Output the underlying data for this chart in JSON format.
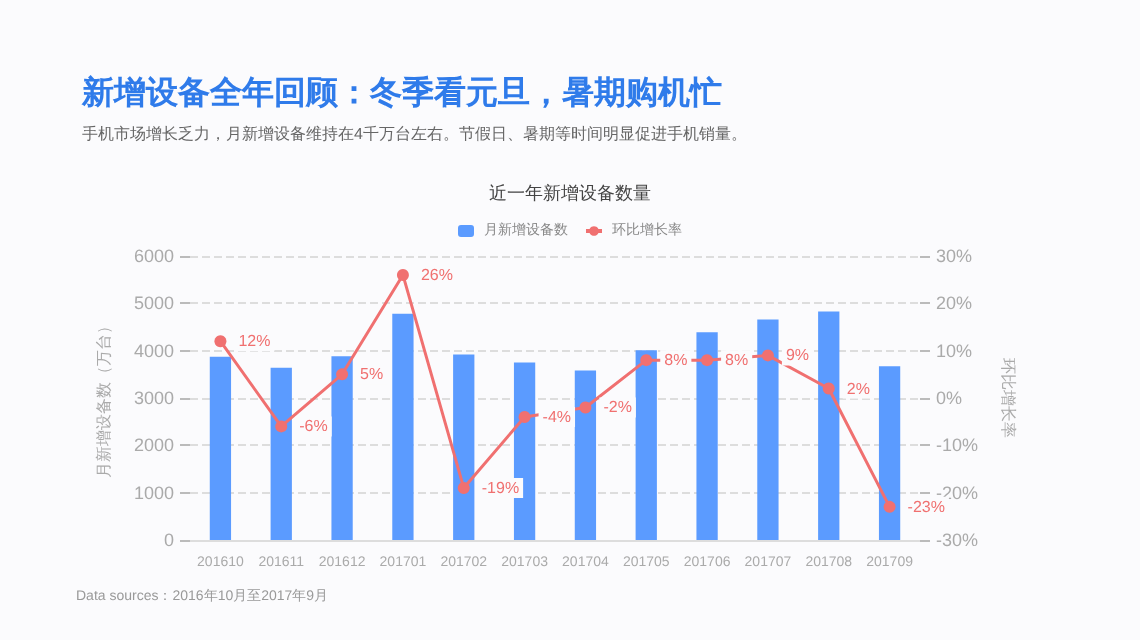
{
  "chart_data": {
    "type": "bar",
    "title": "新增设备全年回顾：冬季看元旦，暑期购机忙",
    "subtitle": "手机市场增长乏力，月新增设备维持在4千万台左右。节假日、暑期等时间明显促进手机销量。",
    "annotations": [
      "近一年新增设备数量",
      "Data sources：2016年10月至2017年9月"
    ],
    "ylabel": "月新增设备数（万台）",
    "y2label": "环比增长率",
    "categories": [
      "201610",
      "201611",
      "201612",
      "201701",
      "201702",
      "201703",
      "201704",
      "201705",
      "201706",
      "201707",
      "201708",
      "201709"
    ],
    "series": [
      {
        "name": "月新增设备数",
        "color": "#5b9bff",
        "values": [
          3870,
          3640,
          3880,
          4780,
          3920,
          3750,
          3580,
          4010,
          4390,
          4660,
          4830,
          3670
        ]
      },
      {
        "name": "环比增长率",
        "type": "line",
        "axis": "y2",
        "color": "#f07070",
        "values": [
          12,
          -6,
          5,
          26,
          -19,
          -4,
          -2,
          8,
          8,
          9,
          2,
          -23
        ],
        "value_labels": [
          "12%",
          "-6%",
          "5%",
          "26%",
          "-19%",
          "-4%",
          "-2%",
          "8%",
          "8%",
          "9%",
          "2%",
          "-23%"
        ]
      }
    ],
    "ylim": [
      0,
      6000
    ],
    "yticks": [
      0,
      1000,
      2000,
      3000,
      4000,
      5000,
      6000
    ],
    "y2lim": [
      -30,
      30
    ],
    "y2ticks": [
      {
        "value": -30,
        "label": "-30%"
      },
      {
        "value": -20,
        "label": "-20%"
      },
      {
        "value": -10,
        "label": "-10%"
      },
      {
        "value": 0,
        "label": "0%"
      },
      {
        "value": 10,
        "label": "10%"
      },
      {
        "value": 20,
        "label": "20%"
      },
      {
        "value": 30,
        "label": "30%"
      }
    ],
    "grid": "y",
    "legend": "top",
    "marker": "circle",
    "line_style": "solid"
  }
}
